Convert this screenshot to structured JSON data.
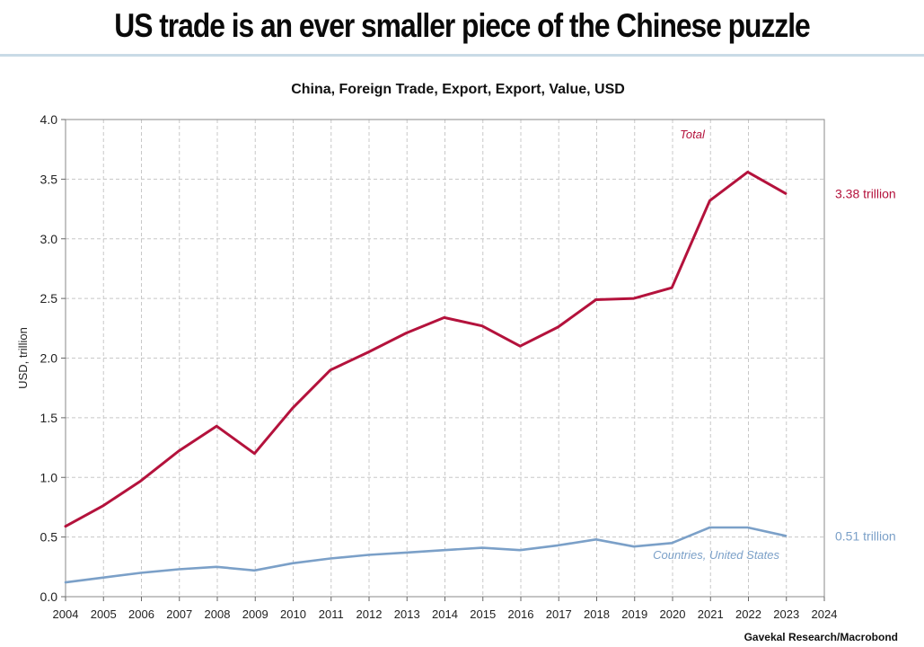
{
  "headline": "US trade is an ever smaller piece of the Chinese puzzle",
  "colors": {
    "total": "#b4123c",
    "us": "#7ba0c8",
    "grid": "#c8c8c8",
    "rule": "#c9dbe6"
  },
  "chart_data": {
    "type": "line",
    "title": "China, Foreign Trade, Export, Export, Value, USD",
    "ylabel": "USD, trillion",
    "xlabel": "",
    "source": "Gavekal Research/Macrobond",
    "xlim": [
      2004,
      2024
    ],
    "ylim": [
      0,
      4.0
    ],
    "xticks": [
      "2004",
      "2005",
      "2006",
      "2007",
      "2008",
      "2009",
      "2010",
      "2011",
      "2012",
      "2013",
      "2014",
      "2015",
      "2016",
      "2017",
      "2018",
      "2019",
      "2020",
      "2021",
      "2022",
      "2023",
      "2024"
    ],
    "yticks": [
      "0.0",
      "0.5",
      "1.0",
      "1.5",
      "2.0",
      "2.5",
      "3.0",
      "3.5",
      "4.0"
    ],
    "grid": true,
    "series": [
      {
        "name": "Total",
        "end_label": "3.38 trillion",
        "x": [
          2004,
          2004.98,
          2005.98,
          2006.98,
          2007.98,
          2008.98,
          2009.98,
          2010.98,
          2011.98,
          2012.98,
          2013.98,
          2014.98,
          2015.98,
          2016.98,
          2017.98,
          2018.98,
          2019.98,
          2020.98,
          2021.98,
          2022.98
        ],
        "y": [
          0.59,
          0.76,
          0.97,
          1.22,
          1.43,
          1.2,
          1.58,
          1.9,
          2.05,
          2.21,
          2.34,
          2.27,
          2.1,
          2.26,
          2.49,
          2.5,
          2.59,
          3.32,
          3.56,
          3.38
        ]
      },
      {
        "name": "Countries, United States",
        "end_label": "0.51 trillion",
        "x": [
          2004,
          2004.98,
          2005.98,
          2006.98,
          2007.98,
          2008.98,
          2009.98,
          2010.98,
          2011.98,
          2012.98,
          2013.98,
          2014.98,
          2015.98,
          2016.98,
          2017.98,
          2018.98,
          2019.98,
          2020.98,
          2021.98,
          2022.98
        ],
        "y": [
          0.12,
          0.16,
          0.2,
          0.23,
          0.25,
          0.22,
          0.28,
          0.32,
          0.35,
          0.37,
          0.39,
          0.41,
          0.39,
          0.43,
          0.48,
          0.42,
          0.45,
          0.58,
          0.58,
          0.51
        ]
      }
    ]
  }
}
